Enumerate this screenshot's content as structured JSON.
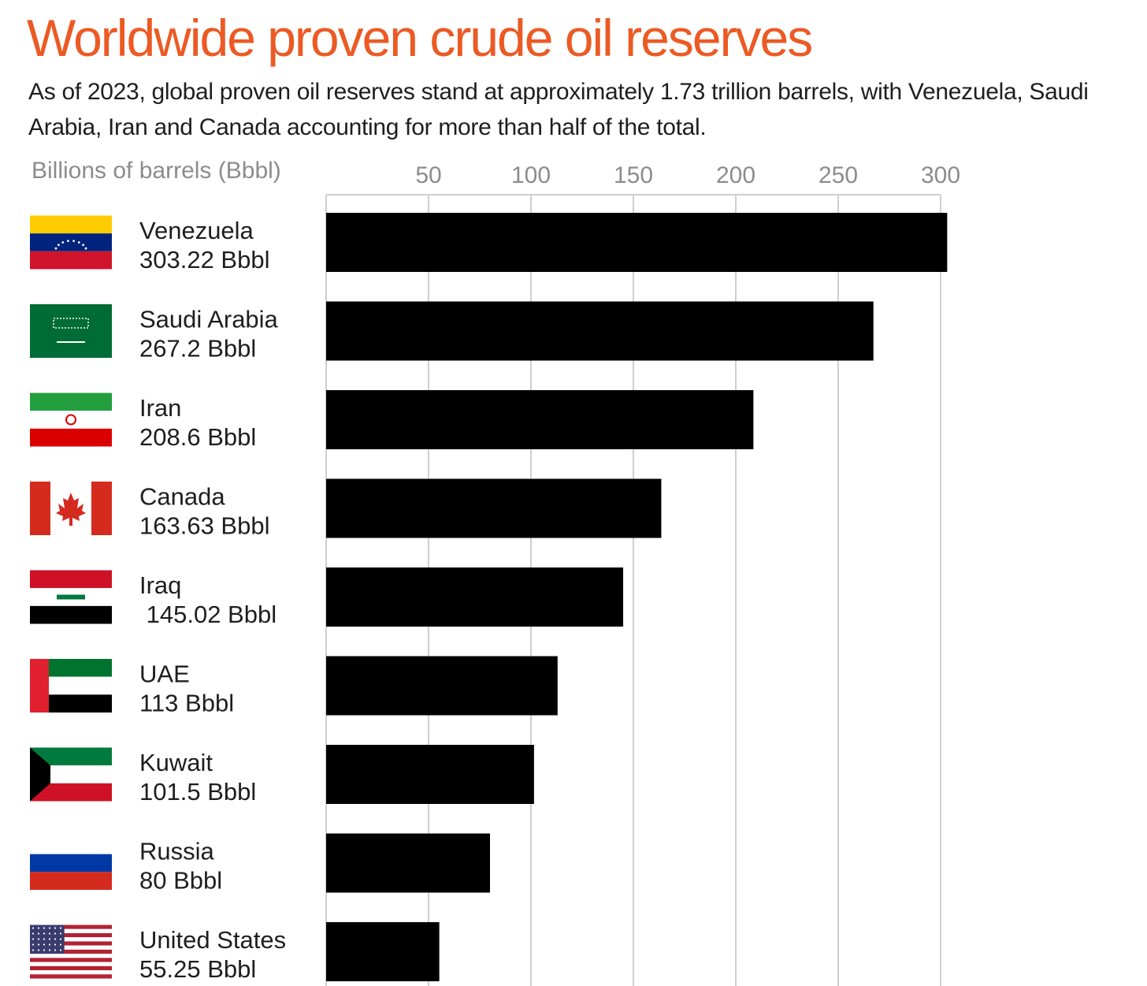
{
  "title": "Worldwide proven crude oil reserves",
  "subtitle": "As of 2023, global proven oil reserves stand at approximately 1.73 trillion barrels, with Venezuela, Saudi Arabia, Iran and Canada accounting for more than half of the total.",
  "colors": {
    "title": "#ec5a24",
    "bar": "#000000",
    "grid": "#cfcfcf",
    "text": "#1e1e1e",
    "muted": "#8c8c8c"
  },
  "chart_data": {
    "type": "bar",
    "orientation": "horizontal",
    "title": "Worldwide proven crude oil reserves",
    "xlabel": "Billions of barrels (Bbbl)",
    "ylabel": "",
    "xlim": [
      0,
      300
    ],
    "xticks": [
      "50",
      "100",
      "150",
      "200",
      "250",
      "300"
    ],
    "grid": true,
    "categories": [
      "Venezuela",
      "Saudi Arabia",
      "Iran",
      "Canada",
      "Iraq",
      "UAE",
      "Kuwait",
      "Russia",
      "United States"
    ],
    "value_labels": [
      "303.22 Bbbl",
      "267.2 Bbbl",
      "208.6 Bbbl",
      "163.63 Bbbl",
      " 145.02 Bbbl",
      "113 Bbbl",
      "101.5 Bbbl",
      "80 Bbbl",
      "55.25 Bbbl"
    ],
    "values": [
      303.22,
      267.2,
      208.6,
      163.63,
      145.02,
      113,
      101.5,
      80,
      55.25
    ],
    "flags": [
      "venezuela-flag-icon",
      "saudi-arabia-flag-icon",
      "iran-flag-icon",
      "canada-flag-icon",
      "iraq-flag-icon",
      "uae-flag-icon",
      "kuwait-flag-icon",
      "russia-flag-icon",
      "united-states-flag-icon"
    ]
  }
}
